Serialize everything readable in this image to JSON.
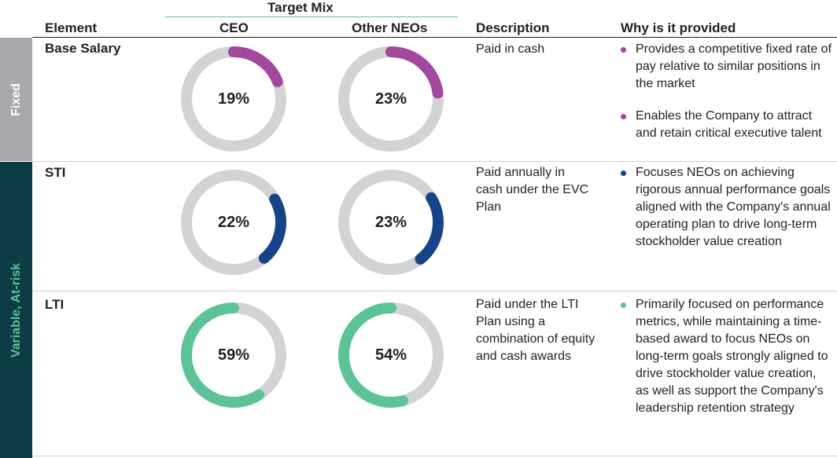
{
  "colors": {
    "fixed_band": "#a7a9ac",
    "variable_band": "#0c3c46",
    "fixed_label": "#ffffff",
    "variable_label": "#5bc497",
    "ring_bg": "#d1d3d4",
    "base_salary": "#a3479f",
    "sti": "#15448b",
    "lti": "#5bc497"
  },
  "header": {
    "target_mix": "Target Mix",
    "element": "Element",
    "ceo": "CEO",
    "other_neos": "Other NEOs",
    "description": "Description",
    "why": "Why is it provided"
  },
  "groups": {
    "fixed": "Fixed",
    "variable": "Variable, At-risk"
  },
  "rows": [
    {
      "element": "Base Salary",
      "ceo_value": 19,
      "ceo_label": "19%",
      "neo_value": 23,
      "neo_label": "23%",
      "color_key": "base_salary",
      "description": "Paid in cash",
      "bullets": [
        "Provides a competitive fixed rate of pay relative to similar positions in the market",
        "Enables the Company to attract and retain critical executive talent"
      ]
    },
    {
      "element": "STI",
      "ceo_value": 22,
      "ceo_label": "22%",
      "neo_value": 23,
      "neo_label": "23%",
      "color_key": "sti",
      "description": "Paid annually in cash under the EVC Plan",
      "bullets": [
        "Focuses NEOs on achieving rigorous annual performance goals aligned with the Company's annual operating plan to drive long-term stockholder value creation"
      ]
    },
    {
      "element": "LTI",
      "ceo_value": 59,
      "ceo_label": "59%",
      "neo_value": 54,
      "neo_label": "54%",
      "color_key": "lti",
      "description": "Paid under the LTI Plan using a combination of equity and cash awards",
      "bullets": [
        "Primarily focused on performance metrics, while maintaining a time-based award to focus NEOs on long-term goals strongly aligned to drive stockholder value creation, as well as support the Company's leadership retention strategy"
      ]
    }
  ]
}
